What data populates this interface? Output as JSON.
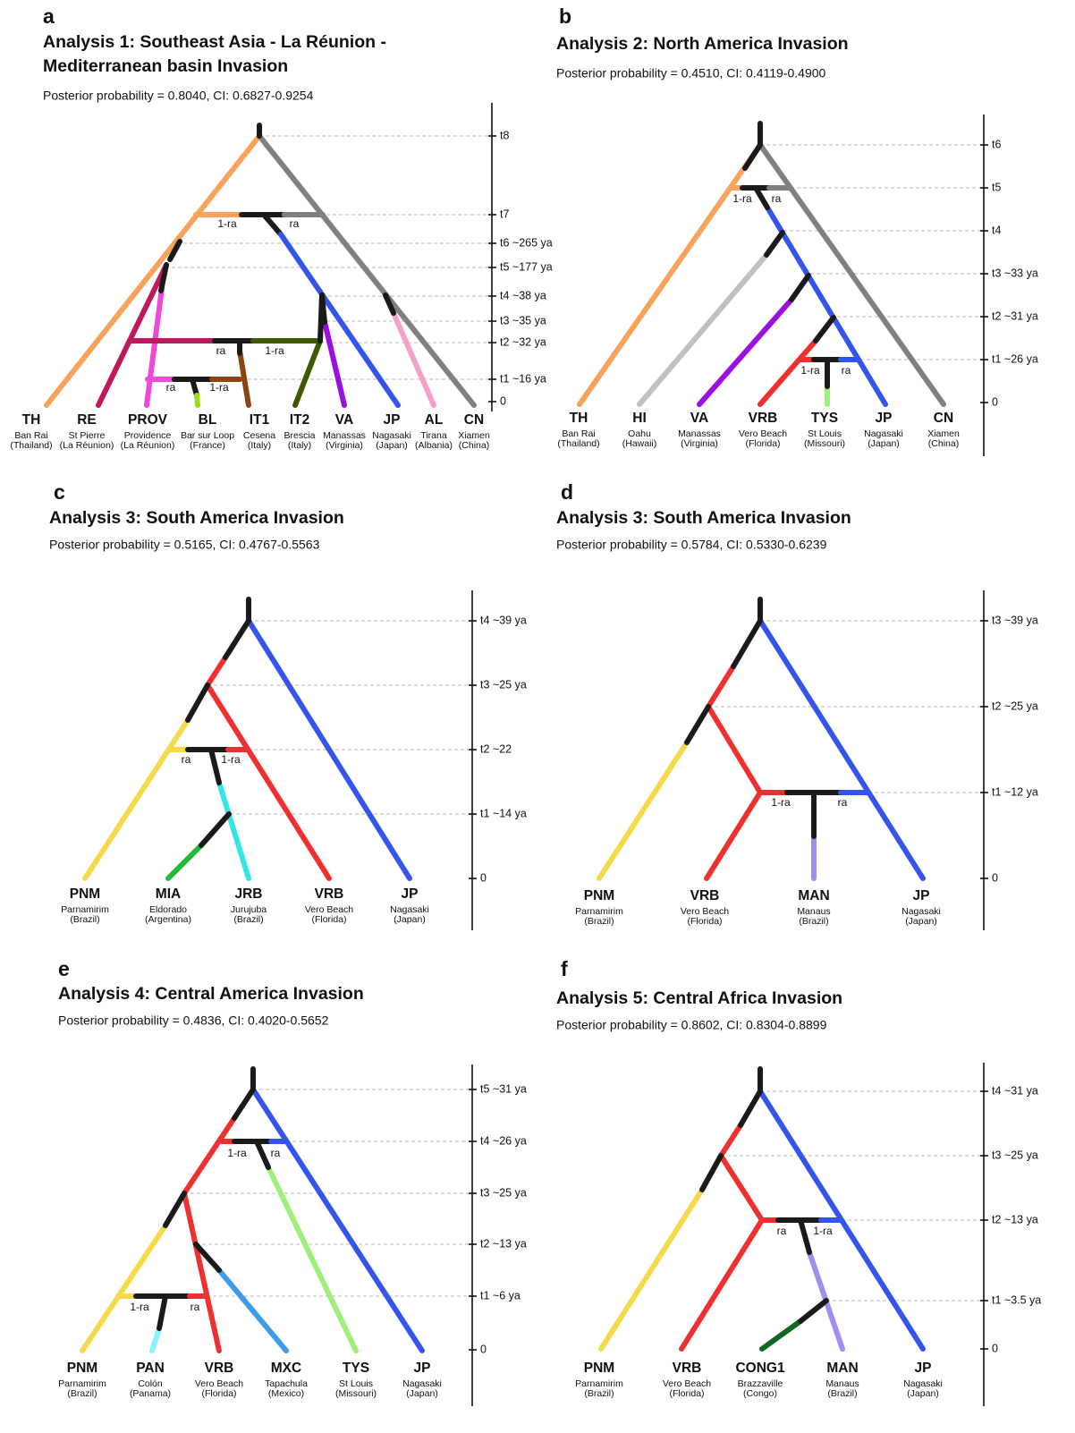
{
  "panels": [
    {
      "letter": "a",
      "title": [
        "Analysis 1: Southeast Asia - La Réunion -",
        "Mediterranean basin Invasion"
      ],
      "subtitle": "Posterior probability = 0.8040, CI: 0.6827-0.9254",
      "times": [
        "t8",
        "t7",
        "t6 ~265 ya",
        "t5 ~177 ya",
        "t4 ~38 ya",
        "t3 ~35 ya",
        "t2 ~32 ya",
        "t1 ~16 ya",
        "0"
      ],
      "taxa": [
        {
          "code": "TH",
          "place": "Ban Rai",
          "region": "(Thailand)"
        },
        {
          "code": "RE",
          "place": "St Pierre",
          "region": "(La Réunion)"
        },
        {
          "code": "PROV",
          "place": "Providence",
          "region": "(La Réunion)"
        },
        {
          "code": "BL",
          "place": "Bar sur Loop",
          "region": "(France)"
        },
        {
          "code": "IT1",
          "place": "Cesena",
          "region": "(Italy)"
        },
        {
          "code": "IT2",
          "place": "Brescia",
          "region": "(Italy)"
        },
        {
          "code": "VA",
          "place": "Manassas",
          "region": "(Virginia)"
        },
        {
          "code": "JP",
          "place": "Nagasaki",
          "region": "(Japan)"
        },
        {
          "code": "AL",
          "place": "Tirana",
          "region": "(Albania)"
        },
        {
          "code": "CN",
          "place": "Xiamen",
          "region": "(China)"
        }
      ],
      "admixture": [
        "1-ra",
        "ra",
        "ra",
        "1-ra",
        "ra",
        "1-ra"
      ]
    },
    {
      "letter": "b",
      "title": [
        "Analysis 2: North America Invasion"
      ],
      "subtitle": "Posterior probability = 0.4510, CI: 0.4119-0.4900",
      "times": [
        "t6",
        "t5",
        "t4",
        "t3 ~33 ya",
        "t2 ~31 ya",
        "t1 ~26 ya",
        "0"
      ],
      "taxa": [
        {
          "code": "TH",
          "place": "Ban Rai",
          "region": "(Thailand)"
        },
        {
          "code": "HI",
          "place": "Oahu",
          "region": "(Hawaii)"
        },
        {
          "code": "VA",
          "place": "Manassas",
          "region": "(Virginia)"
        },
        {
          "code": "VRB",
          "place": "Vero Beach",
          "region": "(Florida)"
        },
        {
          "code": "TYS",
          "place": "St Louis",
          "region": "(Missouri)"
        },
        {
          "code": "JP",
          "place": "Nagasaki",
          "region": "(Japan)"
        },
        {
          "code": "CN",
          "place": "Xiamen",
          "region": "(China)"
        }
      ],
      "admixture": [
        "1-ra",
        "ra",
        "1-ra",
        "ra"
      ]
    },
    {
      "letter": "c",
      "title": [
        "Analysis 3: South America Invasion"
      ],
      "subtitle": "Posterior probability = 0.5165, CI: 0.4767-0.5563",
      "times": [
        "t4 ~39 ya",
        "t3 ~25 ya",
        "t2 ~22",
        "t1 ~14 ya",
        "0"
      ],
      "taxa": [
        {
          "code": "PNM",
          "place": "Parnamirim",
          "region": "(Brazil)"
        },
        {
          "code": "MIA",
          "place": "Eldorado",
          "region": "(Argentina)"
        },
        {
          "code": "JRB",
          "place": "Jurujuba",
          "region": "(Brazil)"
        },
        {
          "code": "VRB",
          "place": "Vero Beach",
          "region": "(Florida)"
        },
        {
          "code": "JP",
          "place": "Nagasaki",
          "region": "(Japan)"
        }
      ],
      "admixture": [
        "ra",
        "1-ra"
      ]
    },
    {
      "letter": "d",
      "title": [
        "Analysis 3: South America Invasion"
      ],
      "subtitle": "Posterior probability = 0.5784, CI: 0.5330-0.6239",
      "times": [
        "t3 ~39 ya",
        "t2 ~25 ya",
        "t1 ~12 ya",
        "0"
      ],
      "taxa": [
        {
          "code": "PNM",
          "place": "Parnamirim",
          "region": "(Brazil)"
        },
        {
          "code": "VRB",
          "place": "Vero Beach",
          "region": "(Florida)"
        },
        {
          "code": "MAN",
          "place": "Manaus",
          "region": "(Brazil)"
        },
        {
          "code": "JP",
          "place": "Nagasaki",
          "region": "(Japan)"
        }
      ],
      "admixture": [
        "1-ra",
        "ra"
      ]
    },
    {
      "letter": "e",
      "title": [
        "Analysis 4: Central America Invasion"
      ],
      "subtitle": "Posterior probability = 0.4836, CI: 0.4020-0.5652",
      "times": [
        "t5 ~31 ya",
        "t4 ~26 ya",
        "t3 ~25 ya",
        "t2 ~13 ya",
        "t1 ~6 ya",
        "0"
      ],
      "taxa": [
        {
          "code": "PNM",
          "place": "Parnamirim",
          "region": "(Brazil)"
        },
        {
          "code": "PAN",
          "place": "Colón",
          "region": "(Panama)"
        },
        {
          "code": "VRB",
          "place": "Vero Beach",
          "region": "(Florida)"
        },
        {
          "code": "MXC",
          "place": "Tapachula",
          "region": "(Mexico)"
        },
        {
          "code": "TYS",
          "place": "St Louis",
          "region": "(Missouri)"
        },
        {
          "code": "JP",
          "place": "Nagasaki",
          "region": "(Japan)"
        }
      ],
      "admixture": [
        "1-ra",
        "ra",
        "1-ra",
        "ra"
      ]
    },
    {
      "letter": "f",
      "title": [
        "Analysis 5: Central Africa Invasion"
      ],
      "subtitle": "Posterior probability = 0.8602, CI: 0.8304-0.8899",
      "times": [
        "t4 ~31 ya",
        "t3 ~25 ya",
        "t2 ~13 ya",
        "t1 ~3.5 ya",
        "0"
      ],
      "taxa": [
        {
          "code": "PNM",
          "place": "Parnamirim",
          "region": "(Brazil)"
        },
        {
          "code": "VRB",
          "place": "Vero Beach",
          "region": "(Florida)"
        },
        {
          "code": "CONG1",
          "place": "Brazzaville",
          "region": "(Congo)"
        },
        {
          "code": "MAN",
          "place": "Manaus",
          "region": "(Brazil)"
        },
        {
          "code": "JP",
          "place": "Nagasaki",
          "region": "(Japan)"
        }
      ],
      "admixture": [
        "ra",
        "1-ra"
      ]
    }
  ]
}
